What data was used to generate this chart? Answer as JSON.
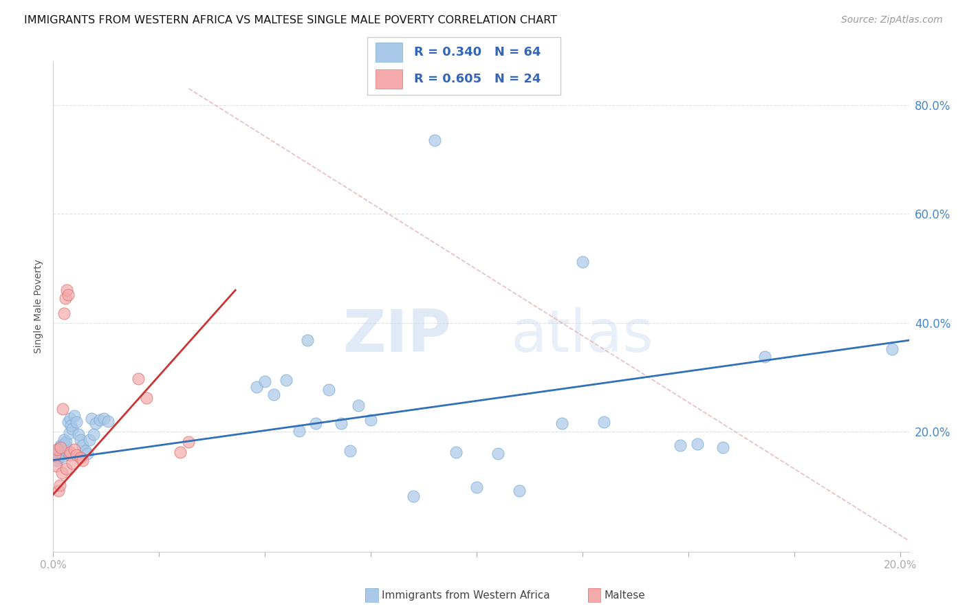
{
  "title": "IMMIGRANTS FROM WESTERN AFRICA VS MALTESE SINGLE MALE POVERTY CORRELATION CHART",
  "source": "Source: ZipAtlas.com",
  "ylabel": "Single Male Poverty",
  "legend_blue_r": "R = 0.340",
  "legend_blue_n": "N = 64",
  "legend_pink_r": "R = 0.605",
  "legend_pink_n": "N = 24",
  "legend_label_blue": "Immigrants from Western Africa",
  "legend_label_pink": "Maltese",
  "xlim": [
    0.0,
    0.202
  ],
  "ylim": [
    -0.02,
    0.88
  ],
  "ytick_vals": [
    0.2,
    0.4,
    0.6,
    0.8
  ],
  "ytick_labels": [
    "20.0%",
    "40.0%",
    "60.0%",
    "80.0%"
  ],
  "xtick_vals": [
    0.0,
    0.025,
    0.05,
    0.075,
    0.1,
    0.125,
    0.15,
    0.175,
    0.2
  ],
  "xtick_label_left": "0.0%",
  "xtick_label_right": "20.0%",
  "blue_color": "#aac8e8",
  "blue_edge_color": "#7aacd4",
  "pink_color": "#f4aaaa",
  "pink_edge_color": "#e07070",
  "blue_line_color": "#3070b8",
  "pink_line_color": "#cc3333",
  "dash_line_color": "#e8b0b0",
  "blue_trend_x": [
    0.0,
    0.202
  ],
  "blue_trend_y": [
    0.148,
    0.368
  ],
  "pink_trend_x": [
    0.0,
    0.043
  ],
  "pink_trend_y": [
    0.085,
    0.46
  ],
  "dash_line_x": [
    0.032,
    0.202
  ],
  "dash_line_y": [
    0.83,
    0.0
  ],
  "blue_scatter_x": [
    0.0005,
    0.0008,
    0.001,
    0.001,
    0.0012,
    0.0012,
    0.0015,
    0.0015,
    0.0018,
    0.0018,
    0.002,
    0.002,
    0.0022,
    0.0025,
    0.0025,
    0.0025,
    0.0028,
    0.003,
    0.003,
    0.0035,
    0.0038,
    0.004,
    0.0042,
    0.0045,
    0.005,
    0.0055,
    0.006,
    0.0065,
    0.007,
    0.0075,
    0.008,
    0.0085,
    0.009,
    0.0095,
    0.01,
    0.011,
    0.012,
    0.013,
    0.048,
    0.05,
    0.052,
    0.055,
    0.058,
    0.06,
    0.062,
    0.065,
    0.068,
    0.07,
    0.072,
    0.075,
    0.085,
    0.09,
    0.095,
    0.1,
    0.105,
    0.11,
    0.12,
    0.125,
    0.13,
    0.148,
    0.152,
    0.158,
    0.168,
    0.198
  ],
  "blue_scatter_y": [
    0.155,
    0.162,
    0.148,
    0.158,
    0.168,
    0.152,
    0.165,
    0.172,
    0.158,
    0.175,
    0.162,
    0.17,
    0.155,
    0.168,
    0.178,
    0.185,
    0.175,
    0.165,
    0.182,
    0.218,
    0.198,
    0.225,
    0.212,
    0.205,
    0.23,
    0.218,
    0.195,
    0.185,
    0.175,
    0.165,
    0.16,
    0.185,
    0.225,
    0.195,
    0.215,
    0.222,
    0.225,
    0.22,
    0.282,
    0.292,
    0.268,
    0.295,
    0.202,
    0.368,
    0.215,
    0.278,
    0.215,
    0.165,
    0.248,
    0.222,
    0.082,
    0.735,
    0.162,
    0.098,
    0.16,
    0.092,
    0.215,
    0.512,
    0.218,
    0.175,
    0.178,
    0.172,
    0.338,
    0.352
  ],
  "pink_scatter_x": [
    0.0005,
    0.0008,
    0.001,
    0.0012,
    0.0015,
    0.0018,
    0.002,
    0.0022,
    0.0025,
    0.0028,
    0.003,
    0.0032,
    0.0035,
    0.0038,
    0.004,
    0.0045,
    0.005,
    0.0055,
    0.0065,
    0.007,
    0.02,
    0.022,
    0.03,
    0.032
  ],
  "pink_scatter_y": [
    0.158,
    0.138,
    0.168,
    0.092,
    0.102,
    0.172,
    0.125,
    0.242,
    0.418,
    0.445,
    0.132,
    0.46,
    0.452,
    0.158,
    0.162,
    0.142,
    0.168,
    0.158,
    0.152,
    0.148,
    0.298,
    0.262,
    0.162,
    0.182
  ],
  "watermark_zip": "ZIP",
  "watermark_atlas": "atlas",
  "bg_color": "#ffffff",
  "grid_color": "#e0e0e0",
  "grid_style": "--"
}
